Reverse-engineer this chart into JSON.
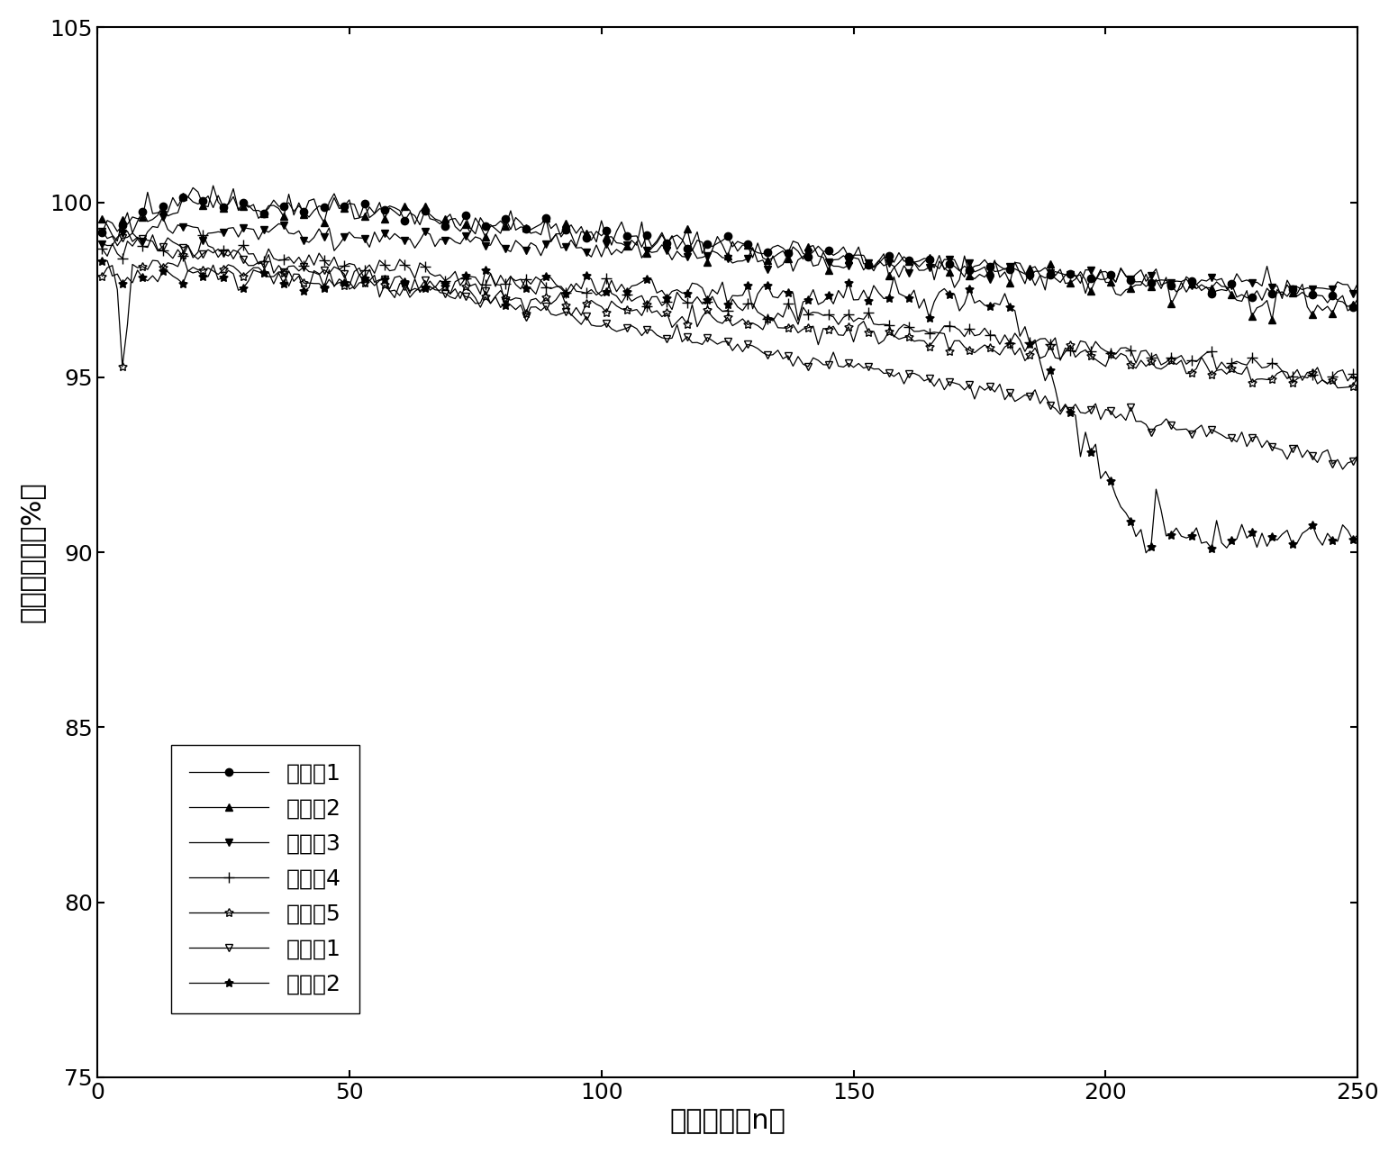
{
  "xlabel": "循环次数（n）",
  "ylabel": "容量保持率（%）",
  "xlim": [
    0,
    250
  ],
  "ylim": [
    75,
    105
  ],
  "xticks": [
    0,
    50,
    100,
    150,
    200,
    250
  ],
  "yticks": [
    75,
    80,
    85,
    90,
    95,
    100,
    105
  ],
  "legend_labels": [
    "实施例1",
    "实施例2",
    "实施例3",
    "实施例4",
    "实施例5",
    "对比例1",
    "对比例2"
  ],
  "font_size_label": 22,
  "font_size_tick": 18,
  "font_size_legend": 18,
  "background_color": "#ffffff"
}
